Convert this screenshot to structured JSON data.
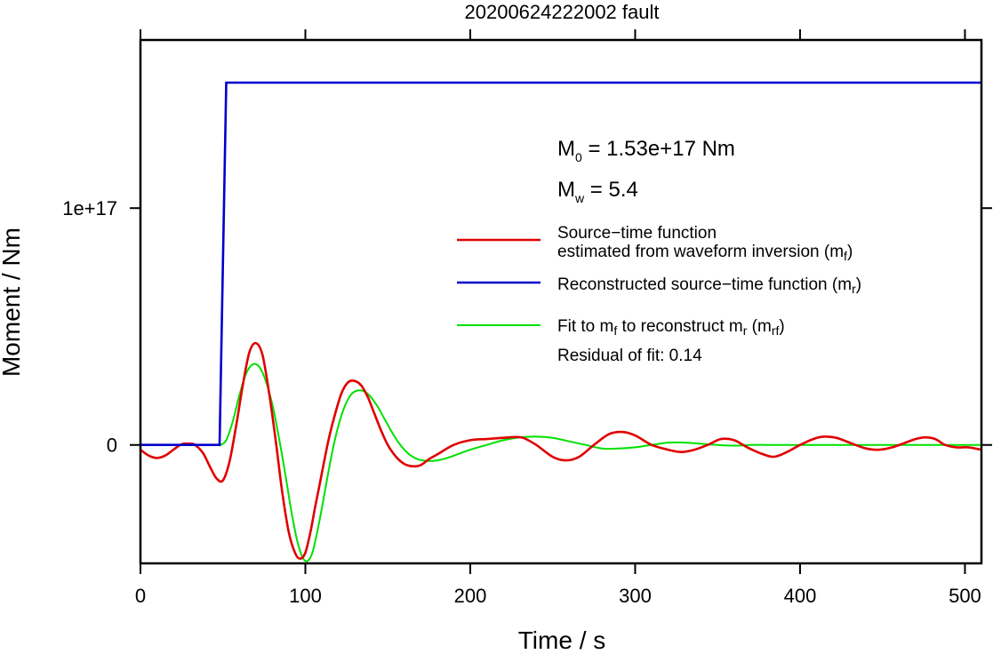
{
  "chart_data": {
    "type": "line",
    "title": "20200624222002 fault",
    "xlabel": "Time / s",
    "ylabel": "Moment / Nm",
    "xlim": [
      0,
      510
    ],
    "ylim": [
      -5e+16,
      1.71e+17
    ],
    "x_ticks": [
      0,
      100,
      200,
      300,
      400,
      500
    ],
    "x_tick_labels": [
      "0",
      "100",
      "200",
      "300",
      "400",
      "500"
    ],
    "y_ticks": [
      0,
      1e+17
    ],
    "y_tick_labels": [
      "0",
      "1e+17"
    ],
    "grid": false,
    "annotations": {
      "m0": {
        "main": "M",
        "sub": "0",
        "rest": " = 1.53e+17 Nm"
      },
      "mw": {
        "main": "M",
        "sub": "w",
        "rest": " = 5.4"
      },
      "residual": "Residual of fit: 0.14"
    },
    "legend": {
      "placement": "right",
      "entries": [
        {
          "line1": "Source−time function",
          "line2a": "estimated from waveform inversion (m",
          "line2sub": "f",
          "line2b": ")",
          "color": "#e00000"
        },
        {
          "line1a": "Reconstructed source−time function (m",
          "line1sub": "r",
          "line1b": ")",
          "color": "#0000cc"
        },
        {
          "p1": "Fit to m",
          "s1": "f",
          "p2": " to reconstruct m",
          "s2": "r",
          "p3": " (m",
          "s3": "rf",
          "p4": ")",
          "color": "#00e000"
        }
      ]
    },
    "series": [
      {
        "color": "#e00000",
        "x": [
          0,
          5,
          10,
          15,
          20,
          25,
          30,
          33,
          38,
          42,
          46,
          50,
          54,
          58,
          62,
          66,
          70,
          74,
          78,
          82,
          86,
          90,
          94,
          97,
          100,
          103,
          106,
          110,
          114,
          118,
          122,
          126,
          130,
          134,
          138,
          142,
          146,
          150,
          155,
          160,
          165,
          170,
          175,
          180,
          190,
          200,
          210,
          220,
          226,
          232,
          240,
          250,
          258,
          266,
          275,
          284,
          292,
          300,
          310,
          320,
          328,
          336,
          344,
          352,
          360,
          368,
          376,
          384,
          392,
          400,
          408,
          414,
          422,
          430,
          440,
          448,
          456,
          464,
          470,
          476,
          482,
          488,
          495,
          502,
          510
        ],
        "y": [
          -2000000000000000.0,
          -4500000000000000.0,
          -5500000000000000.0,
          -4500000000000000.0,
          -2000000000000000.0,
          300000000000000.0,
          500000000000000.0,
          100000000000000.0,
          -3500000000000000.0,
          -9000000000000000.0,
          -1.4e+16,
          -1.5e+16,
          -7000000000000000.0,
          8000000000000000.0,
          2.5e+16,
          3.9e+16,
          4.3e+16,
          3.8e+16,
          2.2e+16,
          2000000000000000.0,
          -2e+16,
          -3.7e+16,
          -4.6e+16,
          -4.8e+16,
          -4.55e+16,
          -3.7e+16,
          -2.6e+16,
          -1.2e+16,
          2000000000000000.0,
          1.3e+16,
          2.2e+16,
          2.65e+16,
          2.7e+16,
          2.5e+16,
          2e+16,
          1.3e+16,
          6000000000000000.0,
          0,
          -5000000000000000.0,
          -8000000000000000.0,
          -9000000000000000.0,
          -8500000000000000.0,
          -6000000000000000.0,
          -4000000000000000.0,
          0,
          2000000000000000.0,
          2500000000000000.0,
          3000000000000000.0,
          3300000000000000.0,
          3000000000000000.0,
          0,
          -5000000000000000.0,
          -6500000000000000.0,
          -5000000000000000.0,
          0,
          4500000000000000.0,
          5500000000000000.0,
          4000000000000000.0,
          0,
          -2000000000000000.0,
          -3000000000000000.0,
          -2000000000000000.0,
          0,
          2500000000000000.0,
          2000000000000000.0,
          -1000000000000000.0,
          -3500000000000000.0,
          -5000000000000000.0,
          -3000000000000000.0,
          0,
          2500000000000000.0,
          3500000000000000.0,
          3000000000000000.0,
          1000000000000000.0,
          -1500000000000000.0,
          -2000000000000000.0,
          -1000000000000000.0,
          1000000000000000.0,
          2500000000000000.0,
          3200000000000000.0,
          2500000000000000.0,
          0,
          -1000000000000000.0,
          -1000000000000000.0,
          -2000000000000000.0
        ]
      },
      {
        "color": "#0000cc",
        "x": [
          0,
          48,
          52,
          510
        ],
        "y": [
          0,
          0,
          1.53e+17,
          1.53e+17
        ]
      },
      {
        "color": "#00e000",
        "x": [
          0,
          44,
          48,
          52,
          56,
          60,
          64,
          68,
          72,
          76,
          80,
          84,
          88,
          92,
          96,
          100,
          104,
          108,
          112,
          116,
          120,
          124,
          128,
          132,
          136,
          140,
          144,
          148,
          152,
          156,
          160,
          164,
          168,
          172,
          176,
          180,
          186,
          192,
          200,
          210,
          220,
          230,
          240,
          250,
          260,
          270,
          280,
          290,
          300,
          310,
          320,
          330,
          340,
          350,
          360,
          370,
          380,
          400,
          420,
          440,
          460,
          480,
          500,
          510
        ],
        "y": [
          0,
          0,
          0,
          2000000000000000.0,
          1e+16,
          2.1e+16,
          3e+16,
          3.4e+16,
          3.3e+16,
          2.7e+16,
          1.7e+16,
          3000000000000000.0,
          -1.3e+16,
          -3e+16,
          -4.3e+16,
          -4.9e+16,
          -4.6e+16,
          -3.4e+16,
          -1.9e+16,
          -4000000000000000.0,
          8000000000000000.0,
          1.65e+16,
          2.15e+16,
          2.3e+16,
          2.25e+16,
          2e+16,
          1.6e+16,
          1.1e+16,
          6000000000000000.0,
          1500000000000000.0,
          -2000000000000000.0,
          -4500000000000000.0,
          -6000000000000000.0,
          -6600000000000000.0,
          -6800000000000000.0,
          -6500000000000000.0,
          -5500000000000000.0,
          -4000000000000000.0,
          -2000000000000000.0,
          0,
          2000000000000000.0,
          3200000000000000.0,
          3500000000000000.0,
          3000000000000000.0,
          1500000000000000.0,
          0,
          -1500000000000000.0,
          -1500000000000000.0,
          -1000000000000000.0,
          0,
          1000000000000000.0,
          1000000000000000.0,
          500000000000000.0,
          0,
          -300000000000000.0,
          0,
          0,
          0,
          0,
          0,
          0,
          0,
          0,
          0
        ]
      }
    ]
  }
}
